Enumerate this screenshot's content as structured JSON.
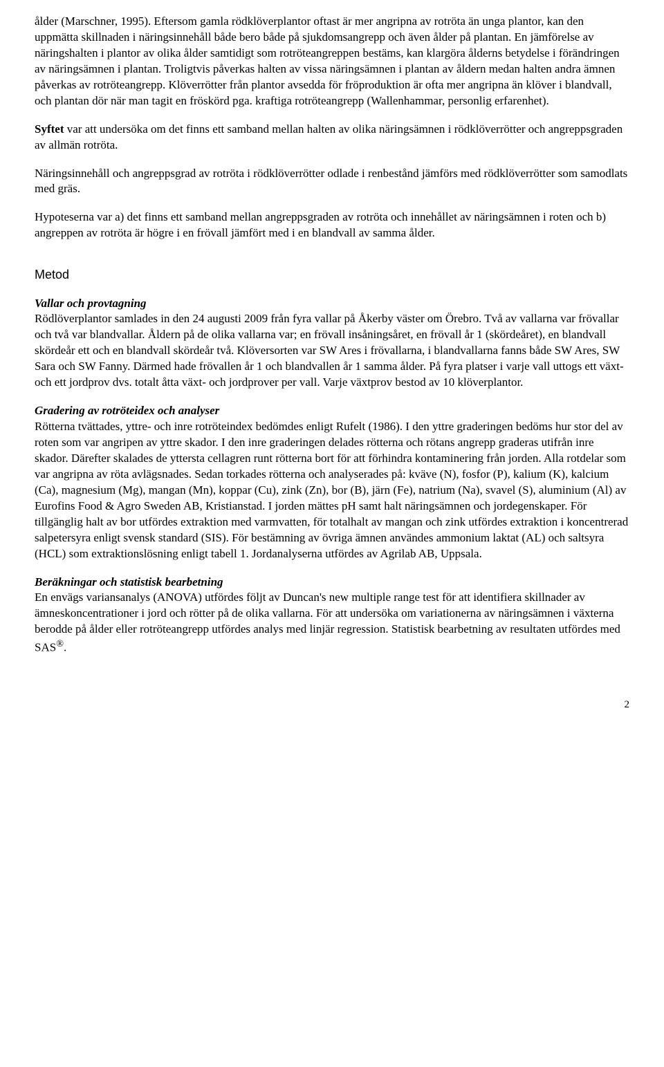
{
  "p1": "ålder (Marschner, 1995). Eftersom gamla rödklöverplantor oftast är mer angripna av rotröta än unga plantor, kan den uppmätta skillnaden i näringsinnehåll både bero både på sjukdomsangrepp och även ålder på plantan. En jämförelse av näringshalten i plantor av olika ålder samtidigt som rotröteangreppen bestäms, kan klargöra ålderns betydelse i förändringen av näringsämnen i plantan. Troligtvis påverkas halten av vissa näringsämnen i plantan av åldern medan halten andra ämnen påverkas av rotröteangrepp. Klöverrötter från plantor avsedda för fröproduktion är ofta mer angripna än klöver i blandvall, och plantan dör när man tagit en fröskörd pga. kraftiga rotröteangrepp (Wallenhammar, personlig erfarenhet).",
  "p2_lead": "Syftet",
  "p2_rest": " var att undersöka om det finns ett samband mellan halten av olika näringsämnen i rödklöverrötter och angreppsgraden av allmän rotröta.",
  "p3": "Näringsinnehåll och angreppsgrad av rotröta i rödklöverrötter odlade i renbestånd jämförs med rödklöverrötter som samodlats med gräs.",
  "p4": "Hypoteserna var a) det finns ett samband mellan angreppsgraden av rotröta och innehållet av näringsämnen i roten och b) angreppen av rotröta är högre i en frövall jämfört med i en blandvall av samma ålder.",
  "h_metod": "Metod",
  "h_vallar": "Vallar och provtagning",
  "p5": "Rödlöverplantor samlades in den 24 augusti 2009 från fyra vallar på Åkerby väster om Örebro. Två av vallarna var frövallar och två var blandvallar. Åldern på de olika vallarna var; en frövall insåningsåret, en frövall år 1 (skördeåret), en blandvall skördeår ett och en blandvall skördeår två. Klöversorten var SW Ares i frövallarna, i blandvallarna fanns både SW Ares, SW Sara och SW Fanny. Därmed hade frövallen år 1 och blandvallen år 1 samma ålder. På fyra platser i varje vall uttogs ett växt- och ett jordprov dvs. totalt åtta växt- och jordprover per vall. Varje växtprov bestod av 10 klöverplantor.",
  "h_grad": "Gradering av rotröteidex och analyser",
  "p6": "Rötterna tvättades, yttre- och inre rotröteindex bedömdes enligt Rufelt (1986). I den yttre graderingen bedöms hur stor del av roten som var angripen av yttre skador. I den inre graderingen delades rötterna och rötans angrepp graderas utifrån inre skador. Därefter skalades de yttersta cellagren runt rötterna bort för att förhindra kontaminering från jorden. Alla rotdelar som var angripna av röta avlägsnades. Sedan torkades rötterna och analyserades på: kväve (N), fosfor (P), kalium (K), kalcium (Ca), magnesium (Mg), mangan (Mn), koppar (Cu), zink (Zn), bor (B), järn (Fe), natrium (Na), svavel (S), aluminium (Al) av Eurofins Food & Agro Sweden AB, Kristianstad. I jorden mättes pH samt halt näringsämnen och jordegenskaper. För tillgänglig halt av bor utfördes extraktion med varmvatten, för totalhalt av mangan och zink utfördes extraktion i koncentrerad salpetersyra enligt svensk standard (SIS). För bestämning av övriga ämnen användes ammonium laktat (AL) och saltsyra (HCL) som extraktionslösning enligt tabell 1. Jordanalyserna utfördes av Agrilab AB, Uppsala.",
  "h_berak": "Beräkningar och statistisk bearbetning",
  "p7_a": "En envägs variansanalys (ANOVA) utfördes följt av Duncan's new multiple range test för att identifiera skillnader av ämneskoncentrationer i jord och rötter på de olika vallarna. För att undersöka om variationerna av näringsämnen i växterna berodde på ålder eller rotröteangrepp utfördes analys med linjär regression. Statistisk bearbetning av resultaten utfördes med SAS",
  "p7_sup": "®",
  "p7_b": ".",
  "page_number": "2"
}
